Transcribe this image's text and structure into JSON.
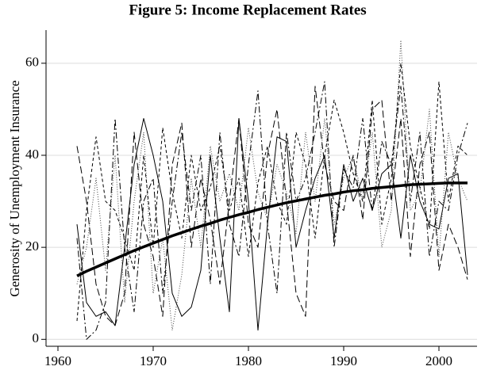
{
  "chart_data": {
    "type": "line",
    "title": "Figure 5: Income Replacement Rates",
    "y_label": "Generosity of Unemployment Insurance",
    "x": [
      1962,
      1963,
      1964,
      1965,
      1966,
      1967,
      1968,
      1969,
      1970,
      1971,
      1972,
      1973,
      1974,
      1975,
      1976,
      1977,
      1978,
      1979,
      1980,
      1981,
      1982,
      1983,
      1984,
      1985,
      1986,
      1987,
      1988,
      1989,
      1990,
      1991,
      1992,
      1993,
      1994,
      1995,
      1996,
      1997,
      1998,
      1999,
      2000,
      2001,
      2002,
      2003
    ],
    "xlim": [
      1959,
      2004
    ],
    "xticks": [
      1960,
      1970,
      1980,
      1990,
      2000
    ],
    "ylim": [
      -1.5,
      67.2
    ],
    "yticks": [
      0,
      20,
      40,
      60
    ],
    "grid": true,
    "series": [
      {
        "color": "#000000",
        "dash": "none",
        "width": 1,
        "values": [
          25,
          8,
          5,
          6,
          3,
          20,
          38,
          48,
          40,
          30,
          10,
          5,
          7,
          15,
          40,
          22,
          6,
          48,
          30,
          2,
          25,
          44,
          43,
          20,
          28,
          35,
          40,
          22,
          38,
          30,
          35,
          28,
          36,
          38,
          22,
          40,
          30,
          25,
          24,
          35,
          36,
          14
        ]
      },
      {
        "color": "#000000",
        "dash": "9 4",
        "width": 1,
        "values": [
          42,
          30,
          12,
          5,
          3,
          10,
          45,
          25,
          18,
          5,
          38,
          47,
          20,
          35,
          26,
          12,
          30,
          48,
          25,
          20,
          40,
          50,
          30,
          10,
          5,
          55,
          38,
          30,
          28,
          40,
          26,
          50,
          52,
          30,
          48,
          18,
          38,
          45,
          15,
          25,
          20,
          13
        ]
      },
      {
        "color": "#000000",
        "dash": "8 3 2 3",
        "width": 1,
        "values": [
          22,
          0,
          2,
          8,
          48,
          20,
          6,
          30,
          35,
          10,
          30,
          45,
          28,
          40,
          12,
          45,
          25,
          18,
          38,
          54,
          25,
          10,
          45,
          30,
          35,
          45,
          56,
          20,
          37,
          33,
          48,
          28,
          43,
          38,
          55,
          30,
          45,
          18,
          30,
          28,
          40,
          47
        ]
      },
      {
        "color": "#444444",
        "dash": "1 2",
        "width": 1,
        "values": [
          12,
          20,
          35,
          15,
          40,
          8,
          30,
          45,
          10,
          22,
          2,
          14,
          35,
          20,
          42,
          30,
          36,
          28,
          46,
          32,
          26,
          38,
          32,
          23,
          45,
          30,
          48,
          25,
          35,
          40,
          30,
          45,
          20,
          28,
          65,
          28,
          32,
          50,
          18,
          45,
          35,
          30
        ]
      },
      {
        "color": "#000000",
        "dash": "4 3",
        "width": 1,
        "values": [
          4,
          28,
          44,
          30,
          28,
          22,
          15,
          40,
          20,
          46,
          32,
          22,
          40,
          28,
          33,
          42,
          28,
          35,
          18,
          34,
          42,
          30,
          25,
          45,
          38,
          22,
          40,
          52,
          45,
          36,
          30,
          52,
          25,
          35,
          60,
          42,
          33,
          24,
          56,
          30,
          42,
          40
        ]
      },
      {
        "color": "#000000",
        "dash": "none",
        "width": 3.5,
        "values": [
          13.8,
          14.8,
          15.7,
          16.6,
          17.5,
          18.4,
          19.3,
          20.1,
          20.9,
          21.7,
          22.5,
          23.2,
          23.9,
          24.6,
          25.2,
          25.9,
          26.5,
          27.1,
          27.6,
          28.2,
          28.7,
          29.2,
          29.7,
          30.1,
          30.5,
          30.9,
          31.3,
          31.6,
          32.0,
          32.3,
          32.5,
          32.8,
          33.0,
          33.2,
          33.4,
          33.6,
          33.7,
          33.8,
          33.9,
          34.0,
          34.0,
          34.0
        ]
      }
    ]
  }
}
